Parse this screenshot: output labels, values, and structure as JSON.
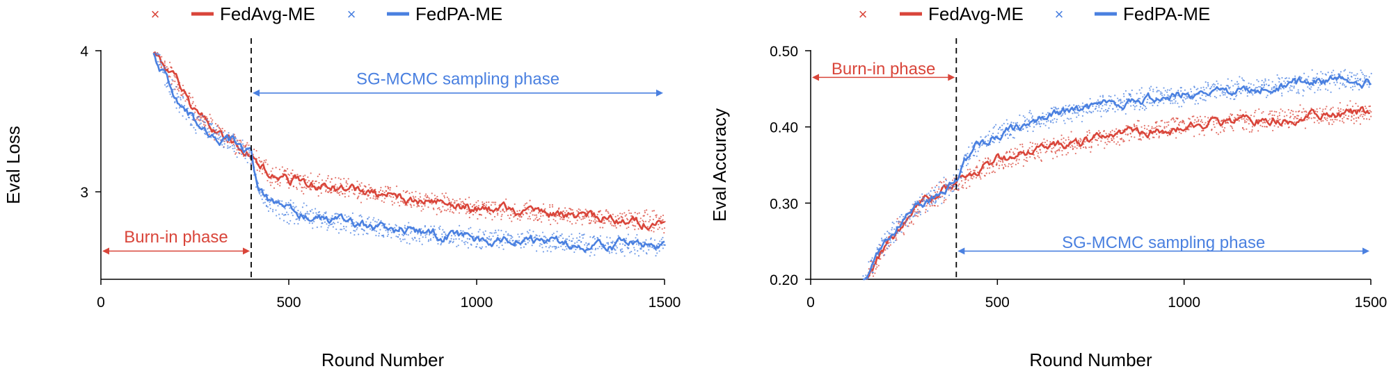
{
  "colors": {
    "fedavg": "#d9453a",
    "fedpa": "#4a80e0",
    "axis": "#000000",
    "divider": "#000000"
  },
  "legend": {
    "fedavg_marker": "×",
    "fedavg_label": "FedAvg-ME",
    "fedpa_marker": "×",
    "fedpa_label": "FedPA-ME"
  },
  "chart_data": [
    {
      "type": "line",
      "ylabel": "Eval Loss",
      "xlabel": "Round Number",
      "xlim": [
        0,
        1500
      ],
      "ylim": [
        2.38,
        4.0
      ],
      "xticks": [
        {
          "v": 0,
          "label": "0"
        },
        {
          "v": 500,
          "label": "500"
        },
        {
          "v": 1000,
          "label": "1000"
        },
        {
          "v": 1500,
          "label": "1500"
        }
      ],
      "yticks": [
        {
          "v": 3.0,
          "label": "3"
        },
        {
          "v": 4.0,
          "label": "4"
        }
      ],
      "divider_x": 400,
      "burnin": {
        "label": "Burn-in phase",
        "x_from": 0,
        "x_to": 400,
        "y": 2.58,
        "label_y": 2.68
      },
      "sampling": {
        "label": "SG-MCMC sampling phase",
        "x_from": 400,
        "x_to": 1500,
        "y": 3.7,
        "label_y": 3.8
      },
      "series": [
        {
          "name": "FedAvg-ME",
          "color_key": "fedavg",
          "x": [
            140,
            200,
            250,
            300,
            350,
            400,
            450,
            500,
            600,
            700,
            800,
            900,
            1000,
            1100,
            1200,
            1300,
            1400,
            1500
          ],
          "y": [
            4.0,
            3.78,
            3.56,
            3.45,
            3.36,
            3.26,
            3.12,
            3.08,
            3.04,
            3.0,
            2.95,
            2.92,
            2.88,
            2.86,
            2.84,
            2.82,
            2.8,
            2.78
          ]
        },
        {
          "name": "FedPA-ME",
          "color_key": "fedpa",
          "x": [
            140,
            200,
            250,
            300,
            350,
            400,
            420,
            450,
            500,
            600,
            700,
            800,
            900,
            1000,
            1100,
            1200,
            1300,
            1400,
            1500
          ],
          "y": [
            4.0,
            3.65,
            3.5,
            3.42,
            3.35,
            3.25,
            2.98,
            2.91,
            2.86,
            2.8,
            2.76,
            2.72,
            2.69,
            2.67,
            2.66,
            2.64,
            2.63,
            2.62,
            2.61
          ]
        }
      ]
    },
    {
      "type": "line",
      "ylabel": "Eval Accuracy",
      "xlabel": "Round Number",
      "xlim": [
        0,
        1500
      ],
      "ylim": [
        0.2,
        0.5
      ],
      "xticks": [
        {
          "v": 0,
          "label": "0"
        },
        {
          "v": 500,
          "label": "500"
        },
        {
          "v": 1000,
          "label": "1000"
        },
        {
          "v": 1500,
          "label": "1500"
        }
      ],
      "yticks": [
        {
          "v": 0.2,
          "label": "0.20"
        },
        {
          "v": 0.3,
          "label": "0.30"
        },
        {
          "v": 0.4,
          "label": "0.40"
        },
        {
          "v": 0.5,
          "label": "0.50"
        }
      ],
      "divider_x": 390,
      "burnin": {
        "label": "Burn-in phase",
        "x_from": 0,
        "x_to": 390,
        "y": 0.465,
        "label_y": 0.4765
      },
      "sampling": {
        "label": "SG-MCMC sampling phase",
        "x_from": 390,
        "x_to": 1500,
        "y": 0.237,
        "label_y": 0.2485
      },
      "series": [
        {
          "name": "FedAvg-ME",
          "color_key": "fedavg",
          "x": [
            150,
            200,
            250,
            300,
            350,
            390,
            450,
            500,
            600,
            700,
            800,
            900,
            1000,
            1100,
            1200,
            1300,
            1400,
            1500
          ],
          "y": [
            0.2,
            0.245,
            0.275,
            0.298,
            0.313,
            0.328,
            0.342,
            0.355,
            0.368,
            0.378,
            0.387,
            0.395,
            0.401,
            0.405,
            0.409,
            0.413,
            0.417,
            0.42
          ]
        },
        {
          "name": "FedPA-ME",
          "color_key": "fedpa",
          "x": [
            140,
            200,
            250,
            300,
            350,
            390,
            410,
            450,
            500,
            600,
            700,
            800,
            900,
            1000,
            1100,
            1200,
            1300,
            1400,
            1500
          ],
          "y": [
            0.2,
            0.25,
            0.28,
            0.3,
            0.315,
            0.328,
            0.355,
            0.378,
            0.39,
            0.408,
            0.42,
            0.43,
            0.437,
            0.443,
            0.448,
            0.452,
            0.456,
            0.462,
            0.46
          ]
        }
      ]
    }
  ]
}
